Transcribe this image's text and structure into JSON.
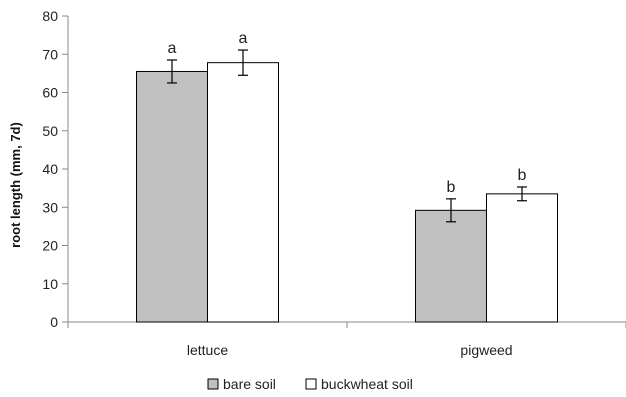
{
  "chart_data": {
    "type": "bar",
    "categories": [
      "lettuce",
      "pigweed"
    ],
    "series": [
      {
        "name": "bare soil",
        "color": "#c0c0c0",
        "values": [
          65.5,
          29.2
        ],
        "errors": [
          3.0,
          3.0
        ],
        "sig": [
          "a",
          "b"
        ]
      },
      {
        "name": "buckwheat soil",
        "color": "#ffffff",
        "values": [
          67.8,
          33.5
        ],
        "errors": [
          3.3,
          1.8
        ],
        "sig": [
          "a",
          "b"
        ]
      }
    ],
    "ylabel": "root length (mm, 7d)",
    "xlabel": "",
    "ylim": [
      0,
      80
    ],
    "yticks": [
      0,
      10,
      20,
      30,
      40,
      50,
      60,
      70,
      80
    ],
    "grid": false,
    "legend_position": "bottom"
  }
}
